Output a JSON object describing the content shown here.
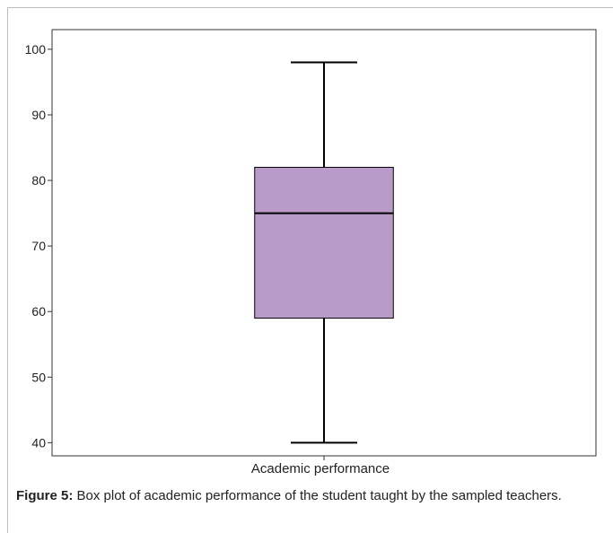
{
  "chart_data": {
    "type": "box",
    "categories": [
      "Academic performance"
    ],
    "series": [
      {
        "min": 40,
        "q1": 59,
        "median": 75,
        "q3": 82,
        "max": 98
      }
    ],
    "xlabel": "Academic performance",
    "ylabel": "",
    "ylim": [
      38,
      103
    ],
    "yticks": [
      40,
      50,
      60,
      70,
      80,
      90,
      100
    ],
    "box_color": "#b89bc9",
    "grid": false
  },
  "caption": {
    "label": "Figure 5:",
    "text": " Box plot of academic performance of the student taught by the sampled teachers."
  }
}
